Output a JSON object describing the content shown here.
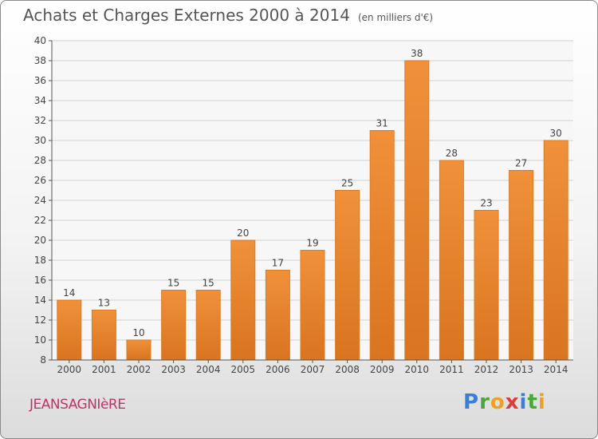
{
  "title": "Achats et Charges Externes 2000 à 2014",
  "subtitle": "(en milliers d'€)",
  "town": "JEANSAGNIèRE",
  "logo": {
    "text": "Proxiti",
    "letters": [
      "P",
      "r",
      "o",
      "x",
      "i",
      "t",
      "i"
    ],
    "colors": [
      "#3a7fd5",
      "#4aa83a",
      "#f0a020",
      "#e03a3a",
      "#3a7fd5",
      "#4aa83a",
      "#f0a020"
    ]
  },
  "colors": {
    "bar": "#f0913a",
    "bar_dark": "#d9741f",
    "grid": "#d0d0d0",
    "axis": "#555555"
  },
  "chart_data": {
    "type": "bar",
    "title": "Achats et Charges Externes 2000 à 2014",
    "categories": [
      "2000",
      "2001",
      "2002",
      "2003",
      "2004",
      "2005",
      "2006",
      "2007",
      "2008",
      "2009",
      "2010",
      "2011",
      "2012",
      "2013",
      "2014"
    ],
    "values": [
      14,
      13,
      10,
      15,
      15,
      20,
      17,
      19,
      25,
      31,
      38,
      28,
      23,
      27,
      30
    ],
    "ylim": [
      8,
      40
    ],
    "yticks": [
      8,
      10,
      12,
      14,
      16,
      18,
      20,
      22,
      24,
      26,
      28,
      30,
      32,
      34,
      36,
      38,
      40
    ],
    "grid": true,
    "data_labels": true
  }
}
